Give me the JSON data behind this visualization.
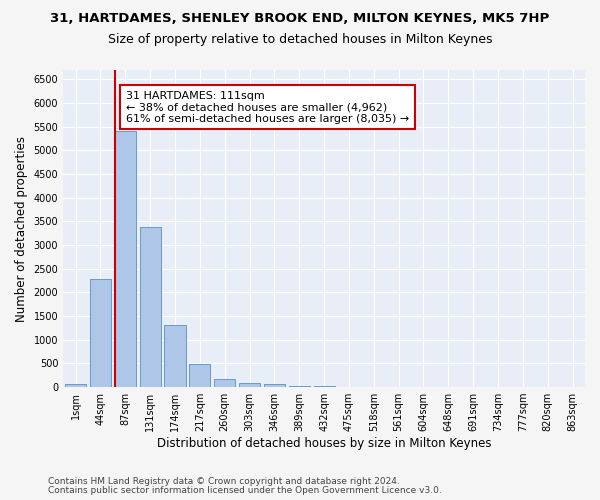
{
  "title": "31, HARTDAMES, SHENLEY BROOK END, MILTON KEYNES, MK5 7HP",
  "subtitle": "Size of property relative to detached houses in Milton Keynes",
  "xlabel": "Distribution of detached houses by size in Milton Keynes",
  "ylabel": "Number of detached properties",
  "footer_line1": "Contains HM Land Registry data © Crown copyright and database right 2024.",
  "footer_line2": "Contains public sector information licensed under the Open Government Licence v3.0.",
  "bar_labels": [
    "1sqm",
    "44sqm",
    "87sqm",
    "131sqm",
    "174sqm",
    "217sqm",
    "260sqm",
    "303sqm",
    "346sqm",
    "389sqm",
    "432sqm",
    "475sqm",
    "518sqm",
    "561sqm",
    "604sqm",
    "648sqm",
    "691sqm",
    "734sqm",
    "777sqm",
    "820sqm",
    "863sqm"
  ],
  "bar_values": [
    75,
    2280,
    5420,
    3380,
    1310,
    480,
    165,
    90,
    55,
    30,
    15,
    10,
    8,
    5,
    4,
    3,
    2,
    2,
    2,
    1,
    1
  ],
  "bar_color": "#aec6e8",
  "bar_edge_color": "#5a8fc0",
  "vline_x_index": 2,
  "vline_color": "#cc0000",
  "annotation_text": "31 HARTDAMES: 111sqm\n← 38% of detached houses are smaller (4,962)\n61% of semi-detached houses are larger (8,035) →",
  "annotation_box_color": "#ffffff",
  "annotation_box_edge": "#cc0000",
  "ylim": [
    0,
    6700
  ],
  "yticks": [
    0,
    500,
    1000,
    1500,
    2000,
    2500,
    3000,
    3500,
    4000,
    4500,
    5000,
    5500,
    6000,
    6500
  ],
  "bg_color": "#e8eef7",
  "fig_bg_color": "#f5f5f5",
  "grid_color": "#ffffff",
  "title_fontsize": 9.5,
  "subtitle_fontsize": 9,
  "axis_label_fontsize": 8.5,
  "tick_fontsize": 7,
  "annotation_fontsize": 8,
  "footer_fontsize": 6.5
}
